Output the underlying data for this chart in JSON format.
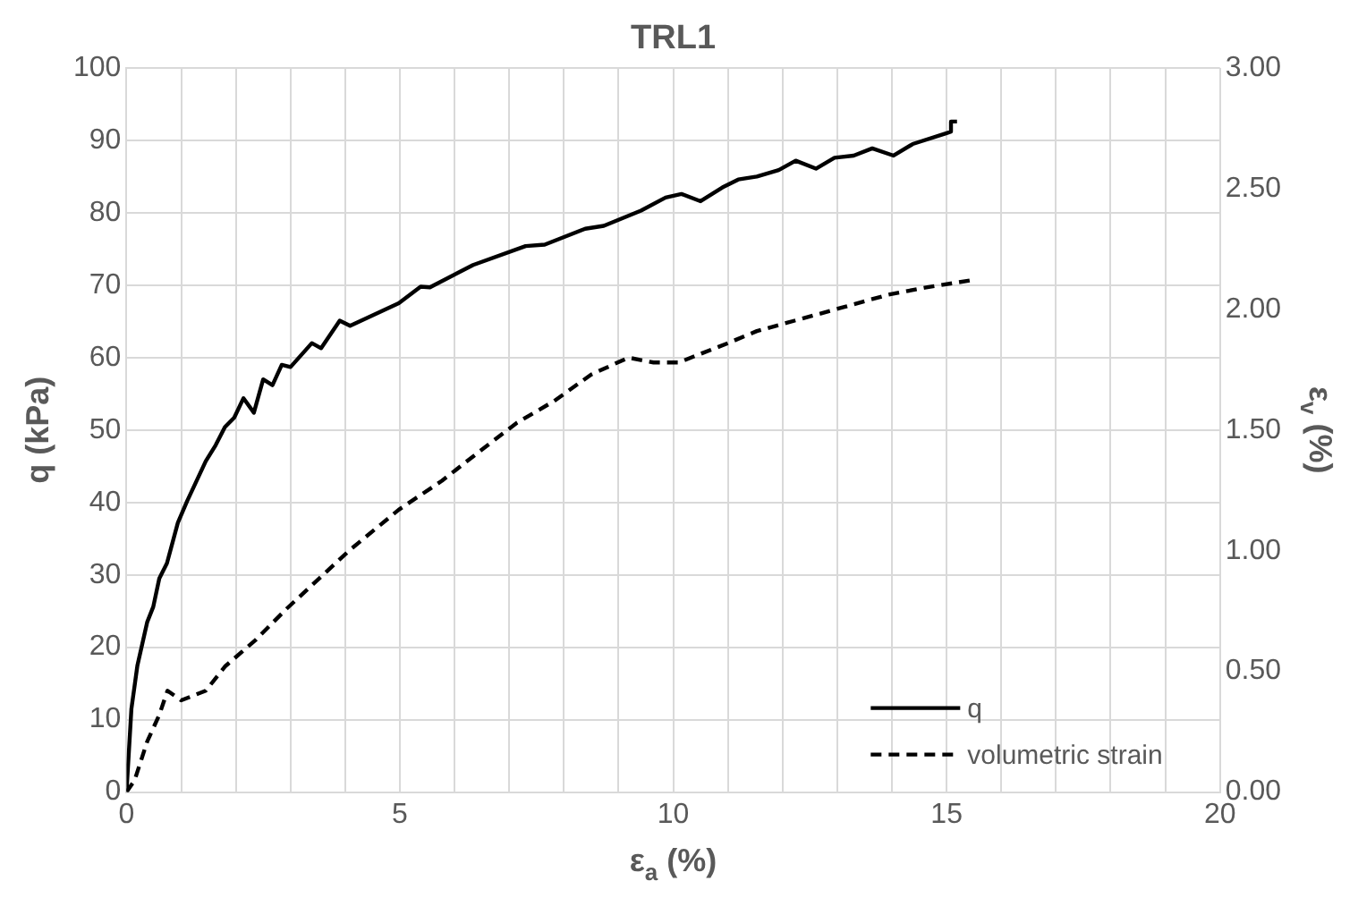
{
  "chart_data": {
    "type": "line",
    "title": "TRL1",
    "xlabel": "ε$_{a}$ (%)",
    "ylabel": "q (kPa)",
    "y2label": "ε$_{v}$ (%)",
    "xlim": [
      0,
      20
    ],
    "xticks": [
      0,
      {
        "value": 1,
        "label": null
      },
      {
        "value": 2,
        "label": null
      },
      {
        "value": 3,
        "label": null
      },
      {
        "value": 4,
        "label": null
      },
      5,
      {
        "value": 6,
        "label": null
      },
      {
        "value": 7,
        "label": null
      },
      {
        "value": 8,
        "label": null
      },
      {
        "value": 9,
        "label": null
      },
      10,
      {
        "value": 11,
        "label": null
      },
      {
        "value": 12,
        "label": null
      },
      {
        "value": 13,
        "label": null
      },
      {
        "value": 14,
        "label": null
      },
      15,
      {
        "value": 16,
        "label": null
      },
      {
        "value": 17,
        "label": null
      },
      {
        "value": 18,
        "label": null
      },
      {
        "value": 19,
        "label": null
      },
      20
    ],
    "ylim": [
      0,
      100
    ],
    "yticks": [
      0,
      10,
      20,
      30,
      40,
      50,
      60,
      70,
      80,
      90,
      100
    ],
    "y2lim": [
      0,
      3
    ],
    "y2ticks": [
      {
        "value": 0,
        "label": "0.00"
      },
      {
        "value": 0.5,
        "label": "0.50"
      },
      {
        "value": 1,
        "label": "1.00"
      },
      {
        "value": 1.5,
        "label": "1.50"
      },
      {
        "value": 2,
        "label": "2.00"
      },
      {
        "value": 2.5,
        "label": "2.50"
      },
      {
        "value": 3,
        "label": "3.00"
      }
    ],
    "grid": true,
    "legend": "bottom right",
    "marker": "none",
    "series": [
      {
        "name": "q",
        "color": "#000000",
        "line_style": "solid",
        "x": [
          0,
          0.09,
          0.2,
          0.38,
          0.49,
          0.6,
          0.74,
          0.94,
          1.11,
          1.45,
          1.63,
          1.8,
          1.97,
          2.14,
          2.33,
          2.5,
          2.67,
          2.84,
          3.0,
          3.39,
          3.56,
          3.9,
          4.09,
          4.98,
          5.38,
          5.55,
          6.34,
          7.3,
          7.65,
          8.39,
          8.73,
          9.41,
          9.86,
          10.15,
          10.5,
          10.9,
          11.19,
          11.53,
          11.93,
          12.24,
          12.61,
          12.95,
          13.3,
          13.64,
          14.03,
          14.38,
          15.0,
          15.08,
          15.08,
          15.19
        ],
        "values": [
          0,
          11.5,
          17.5,
          23.5,
          25.6,
          29.5,
          31.6,
          37.2,
          40.2,
          45.7,
          47.9,
          50.4,
          51.7,
          54.4,
          52.4,
          57,
          56.2,
          59,
          58.7,
          62,
          61.3,
          65.1,
          64.4,
          67.5,
          69.8,
          69.7,
          72.8,
          75.4,
          75.6,
          77.8,
          78.2,
          80.3,
          82.1,
          82.6,
          81.6,
          83.5,
          84.6,
          85,
          85.9,
          87.2,
          86.1,
          87.6,
          87.9,
          88.9,
          87.9,
          89.5,
          91,
          91.2,
          92.6,
          92.6
        ]
      },
      {
        "name": "volumetric strain",
        "color": "#000000",
        "line_style": "dashed",
        "axis": "y2",
        "x": [
          0,
          0.15,
          0.38,
          0.6,
          0.75,
          1.0,
          1.45,
          1.8,
          2.36,
          2.93,
          3.5,
          4.07,
          4.98,
          5.77,
          6.45,
          7.14,
          7.82,
          8.5,
          9.18,
          9.64,
          10.1,
          11.0,
          11.53,
          12.33,
          13.13,
          13.92,
          14.6,
          15.43
        ],
        "values": [
          0,
          0.05,
          0.21,
          0.32,
          0.42,
          0.38,
          0.42,
          0.52,
          0.63,
          0.76,
          0.88,
          1.0,
          1.17,
          1.29,
          1.41,
          1.53,
          1.62,
          1.73,
          1.8,
          1.78,
          1.78,
          1.86,
          1.91,
          1.96,
          2.01,
          2.06,
          2.09,
          2.12
        ]
      }
    ]
  }
}
